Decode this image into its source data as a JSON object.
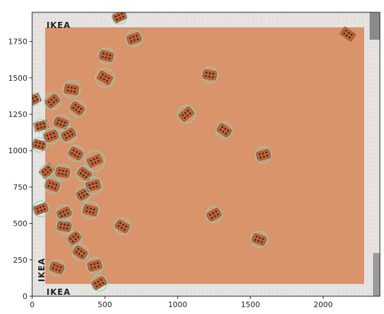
{
  "figure": {
    "x_ticks": [
      "0",
      "500",
      "1000",
      "1500",
      "2000"
    ],
    "y_ticks": [
      "0",
      "250",
      "500",
      "750",
      "1000",
      "1250",
      "1500",
      "1750"
    ],
    "x_range": [
      0,
      2390
    ],
    "y_range": [
      1950,
      0
    ]
  },
  "photo": {
    "logo_text": "IKEA",
    "board_color": "#d9946b",
    "frame_color": "#e6e3e0",
    "brick_color": "#b9643a",
    "circle_color": "#7ed6c8"
  },
  "detections": [
    {
      "x": 460,
      "y": 90,
      "r": 55
    },
    {
      "x": 170,
      "y": 195,
      "r": 55
    },
    {
      "x": 430,
      "y": 210,
      "r": 55
    },
    {
      "x": 330,
      "y": 300,
      "r": 55
    },
    {
      "x": 290,
      "y": 400,
      "r": 50
    },
    {
      "x": 220,
      "y": 480,
      "r": 55
    },
    {
      "x": 220,
      "y": 570,
      "r": 55
    },
    {
      "x": 620,
      "y": 480,
      "r": 55
    },
    {
      "x": 400,
      "y": 590,
      "r": 60
    },
    {
      "x": 60,
      "y": 600,
      "r": 55
    },
    {
      "x": 350,
      "y": 700,
      "r": 50
    },
    {
      "x": 140,
      "y": 760,
      "r": 55
    },
    {
      "x": 420,
      "y": 760,
      "r": 60
    },
    {
      "x": 360,
      "y": 840,
      "r": 55
    },
    {
      "x": 100,
      "y": 860,
      "r": 45
    },
    {
      "x": 210,
      "y": 850,
      "r": 55
    },
    {
      "x": 430,
      "y": 930,
      "r": 70
    },
    {
      "x": 300,
      "y": 980,
      "r": 55
    },
    {
      "x": 50,
      "y": 1040,
      "r": 50
    },
    {
      "x": 130,
      "y": 1100,
      "r": 55
    },
    {
      "x": 250,
      "y": 1110,
      "r": 55
    },
    {
      "x": 200,
      "y": 1190,
      "r": 55
    },
    {
      "x": 60,
      "y": 1170,
      "r": 45
    },
    {
      "x": 310,
      "y": 1290,
      "r": 55
    },
    {
      "x": 140,
      "y": 1340,
      "r": 55
    },
    {
      "x": 270,
      "y": 1420,
      "r": 60
    },
    {
      "x": 10,
      "y": 1350,
      "r": 40
    },
    {
      "x": 500,
      "y": 1500,
      "r": 65
    },
    {
      "x": 510,
      "y": 1650,
      "r": 55
    },
    {
      "x": 700,
      "y": 1770,
      "r": 55
    },
    {
      "x": 1250,
      "y": 560,
      "r": 55
    },
    {
      "x": 1560,
      "y": 390,
      "r": 55
    },
    {
      "x": 1590,
      "y": 970,
      "r": 55
    },
    {
      "x": 1320,
      "y": 1140,
      "r": 55
    },
    {
      "x": 1060,
      "y": 1250,
      "r": 60
    },
    {
      "x": 1220,
      "y": 1520,
      "r": 55
    },
    {
      "x": 600,
      "y": 1920,
      "r": 50
    }
  ],
  "undetected_bricks": [
    {
      "x": 2170,
      "y": 1800
    }
  ]
}
